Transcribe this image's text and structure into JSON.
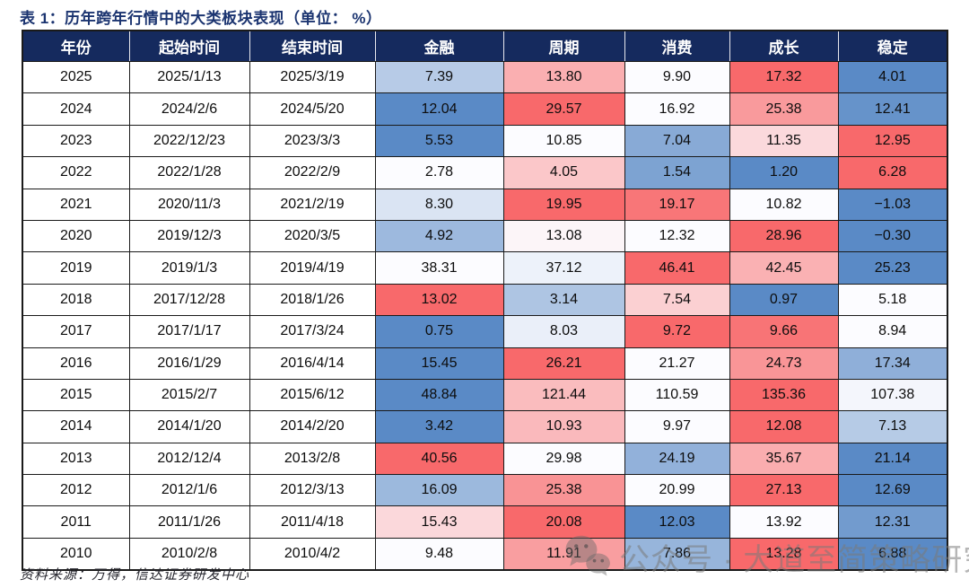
{
  "title": "表 1：历年跨年行情中的大类板块表现（单位： %）",
  "source": "资料来源：万得，信达证券研发中心",
  "watermark": {
    "icon": "wechat-icon",
    "text": "公众号 · 大道至简策略研究",
    "color": "#7a7a7a"
  },
  "colors": {
    "header_background": "#152A5E",
    "header_text": "#FFFFFF",
    "title_navy": "#1B3470",
    "grid_border": "#1A1A1A"
  },
  "chart_data": {
    "type": "table",
    "columns": [
      "年份",
      "起始时间",
      "结束时间",
      "金融",
      "周期",
      "消费",
      "成长",
      "稳定"
    ],
    "rows": [
      [
        "2025",
        "2025/1/13",
        "2025/3/19",
        "7.39",
        "13.80",
        "9.90",
        "17.32",
        "4.01"
      ],
      [
        "2024",
        "2024/2/6",
        "2024/5/20",
        "12.04",
        "29.57",
        "16.92",
        "25.38",
        "12.41"
      ],
      [
        "2023",
        "2022/12/23",
        "2023/3/3",
        "5.53",
        "10.85",
        "7.04",
        "11.35",
        "12.95"
      ],
      [
        "2022",
        "2022/1/28",
        "2022/2/9",
        "2.78",
        "4.05",
        "1.54",
        "1.20",
        "6.28"
      ],
      [
        "2021",
        "2020/11/3",
        "2021/2/19",
        "8.30",
        "19.95",
        "19.17",
        "10.82",
        "-1.03"
      ],
      [
        "2020",
        "2019/12/3",
        "2020/3/5",
        "4.92",
        "13.08",
        "12.32",
        "28.96",
        "-0.30"
      ],
      [
        "2019",
        "2019/1/3",
        "2019/4/19",
        "38.31",
        "37.12",
        "46.41",
        "42.45",
        "25.23"
      ],
      [
        "2018",
        "2017/12/28",
        "2018/1/26",
        "13.02",
        "3.14",
        "7.54",
        "0.97",
        "5.18"
      ],
      [
        "2017",
        "2017/1/17",
        "2017/3/24",
        "0.75",
        "8.03",
        "9.72",
        "9.66",
        "8.94"
      ],
      [
        "2016",
        "2016/1/29",
        "2016/4/14",
        "15.45",
        "26.21",
        "21.27",
        "24.73",
        "17.34"
      ],
      [
        "2015",
        "2015/2/7",
        "2015/6/12",
        "48.84",
        "121.44",
        "110.59",
        "135.36",
        "107.38"
      ],
      [
        "2014",
        "2014/1/20",
        "2014/2/20",
        "3.42",
        "10.93",
        "9.97",
        "12.08",
        "7.13"
      ],
      [
        "2013",
        "2012/12/4",
        "2013/2/8",
        "40.56",
        "29.98",
        "24.19",
        "35.67",
        "21.14"
      ],
      [
        "2012",
        "2012/1/6",
        "2012/3/13",
        "16.09",
        "25.38",
        "20.99",
        "27.13",
        "12.69"
      ],
      [
        "2011",
        "2011/1/26",
        "2011/4/18",
        "15.43",
        "20.08",
        "12.03",
        "13.92",
        "12.31"
      ],
      [
        "2010",
        "2010/2/8",
        "2010/4/2",
        "9.48",
        "11.91",
        "7.86",
        "13.28",
        "6.88"
      ]
    ],
    "heatmap": {
      "scope": "per-row",
      "applies_to_columns": [
        "金融",
        "周期",
        "消费",
        "成长",
        "稳定"
      ],
      "low_anchor": "row minimum",
      "mid_anchor": "row median",
      "high_anchor": "row maximum",
      "low_color": "#5A8AC6",
      "mid_color": "#FCFCFF",
      "high_color": "#F8696B"
    }
  }
}
